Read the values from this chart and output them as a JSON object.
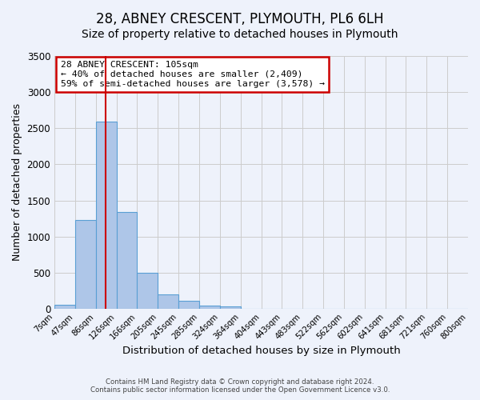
{
  "title": "28, ABNEY CRESCENT, PLYMOUTH, PL6 6LH",
  "subtitle": "Size of property relative to detached houses in Plymouth",
  "xlabel": "Distribution of detached houses by size in Plymouth",
  "ylabel": "Number of detached properties",
  "bin_labels": [
    "7sqm",
    "47sqm",
    "86sqm",
    "126sqm",
    "166sqm",
    "205sqm",
    "245sqm",
    "285sqm",
    "324sqm",
    "364sqm",
    "404sqm",
    "443sqm",
    "483sqm",
    "522sqm",
    "562sqm",
    "602sqm",
    "641sqm",
    "681sqm",
    "721sqm",
    "760sqm",
    "800sqm"
  ],
  "bar_heights": [
    50,
    1230,
    2590,
    1340,
    500,
    200,
    105,
    45,
    35,
    5,
    0,
    0,
    0,
    0,
    0,
    0,
    0,
    0,
    0,
    0
  ],
  "bar_color": "#aec6e8",
  "bar_edge_color": "#5a9fd4",
  "vline_color": "#cc0000",
  "vline_pos": 2.475,
  "ylim": [
    0,
    3500
  ],
  "yticks": [
    0,
    500,
    1000,
    1500,
    2000,
    2500,
    3000,
    3500
  ],
  "annotation_title": "28 ABNEY CRESCENT: 105sqm",
  "annotation_line1": "← 40% of detached houses are smaller (2,409)",
  "annotation_line2": "59% of semi-detached houses are larger (3,578) →",
  "annotation_box_color": "#ffffff",
  "annotation_box_edge": "#cc0000",
  "footer1": "Contains HM Land Registry data © Crown copyright and database right 2024.",
  "footer2": "Contains public sector information licensed under the Open Government Licence v3.0.",
  "background_color": "#eef2fb",
  "grid_color": "#cccccc",
  "title_fontsize": 12,
  "subtitle_fontsize": 10,
  "xlabel_fontsize": 9.5,
  "ylabel_fontsize": 9
}
